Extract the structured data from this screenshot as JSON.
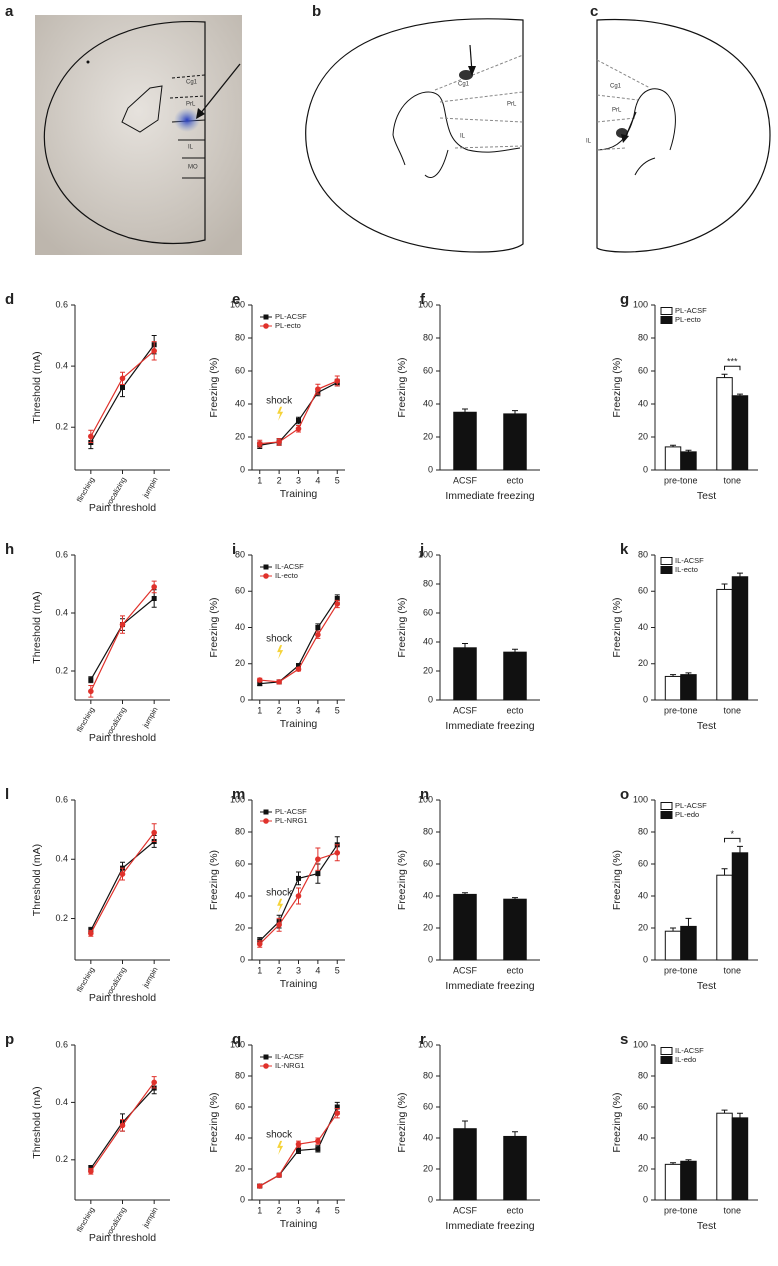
{
  "brains": [
    {
      "panel": "a",
      "labels": [
        "Cg1",
        "PrL",
        "IL",
        "MO"
      ]
    },
    {
      "panel": "b",
      "labels": [
        "Cg1",
        "PrL",
        "IL"
      ]
    },
    {
      "panel": "c",
      "labels": [
        "Cg1",
        "PrL",
        "IL"
      ]
    }
  ],
  "chart_data": [
    {
      "panel": "d",
      "type": "line",
      "ylabel": "Threshold (mA)",
      "xlabel": "Pain threshold",
      "categories": [
        "flinching",
        "vocalizing",
        "jumpin"
      ],
      "ylim": [
        0.06,
        0.6
      ],
      "yticks": [
        0.2,
        0.4,
        0.6
      ],
      "series": [
        {
          "color": "#111111",
          "marker": "square",
          "values": [
            0.15,
            0.33,
            0.47
          ],
          "errors": [
            0.02,
            0.03,
            0.03
          ]
        },
        {
          "color": "#e0312b",
          "marker": "circle",
          "values": [
            0.17,
            0.36,
            0.45
          ],
          "errors": [
            0.02,
            0.02,
            0.03
          ]
        }
      ]
    },
    {
      "panel": "e",
      "type": "line",
      "ylabel": "Freezing (%)",
      "xlabel": "Training",
      "annotation": "shock",
      "x": [
        1,
        2,
        3,
        4,
        5
      ],
      "xlim": [
        0.6,
        5.4
      ],
      "xticks": [
        1,
        2,
        3,
        4,
        5
      ],
      "ylim": [
        0,
        100
      ],
      "yticks": [
        0,
        20,
        40,
        60,
        80,
        100
      ],
      "legend": true,
      "series": [
        {
          "name": "PL-ACSF",
          "color": "#111111",
          "marker": "square",
          "values": [
            15,
            17,
            30,
            47,
            53
          ],
          "errors": [
            2,
            2,
            2,
            2,
            2
          ]
        },
        {
          "name": "PL-ecto",
          "color": "#e0312b",
          "marker": "circle",
          "values": [
            16,
            17,
            25,
            49,
            54
          ],
          "errors": [
            2,
            2,
            2,
            3,
            3
          ]
        }
      ]
    },
    {
      "panel": "f",
      "type": "bar",
      "ylabel": "Freezing (%)",
      "xlabel": "Immediate freezing",
      "categories": [
        "ACSF",
        "ecto"
      ],
      "ylim": [
        0,
        100
      ],
      "yticks": [
        0,
        20,
        40,
        60,
        80,
        100
      ],
      "color": "#111111",
      "values": [
        35,
        34
      ],
      "errors": [
        2,
        2
      ]
    },
    {
      "panel": "g",
      "type": "bar",
      "ylabel": "Freezing (%)",
      "xlabel": "Test",
      "annotation": "***",
      "categories": [
        "pre-tone",
        "tone"
      ],
      "ylim": [
        0,
        100
      ],
      "yticks": [
        0,
        20,
        40,
        60,
        80,
        100
      ],
      "legend": true,
      "series": [
        {
          "name": "PL-ACSF",
          "color": "#ffffff",
          "values": [
            14,
            56
          ],
          "errors": [
            1,
            2
          ]
        },
        {
          "name": "PL-ecto",
          "color": "#111111",
          "values": [
            11,
            45
          ],
          "errors": [
            1,
            1
          ]
        }
      ]
    },
    {
      "panel": "h",
      "type": "line",
      "ylabel": "Threshold (mA)",
      "xlabel": "Pain threshold",
      "categories": [
        "flinching",
        "vocalizing",
        "jumpin"
      ],
      "ylim": [
        0.1,
        0.6
      ],
      "yticks": [
        0.2,
        0.4,
        0.6
      ],
      "series": [
        {
          "color": "#111111",
          "marker": "square",
          "values": [
            0.17,
            0.36,
            0.45
          ],
          "errors": [
            0.01,
            0.02,
            0.03
          ]
        },
        {
          "color": "#e0312b",
          "marker": "circle",
          "values": [
            0.13,
            0.36,
            0.49
          ],
          "errors": [
            0.02,
            0.03,
            0.02
          ]
        }
      ]
    },
    {
      "panel": "i",
      "type": "line",
      "ylabel": "Freezing (%)",
      "xlabel": "Training",
      "annotation": "shock",
      "x": [
        1,
        2,
        3,
        4,
        5
      ],
      "xlim": [
        0.6,
        5.4
      ],
      "xticks": [
        1,
        2,
        3,
        4,
        5
      ],
      "ylim": [
        0,
        80
      ],
      "yticks": [
        0,
        20,
        40,
        60,
        80
      ],
      "legend": true,
      "series": [
        {
          "name": "IL-ACSF",
          "color": "#111111",
          "marker": "square",
          "values": [
            9,
            10,
            19,
            40,
            56
          ],
          "errors": [
            1,
            1,
            1,
            2,
            2
          ]
        },
        {
          "name": "IL-ecto",
          "color": "#e0312b",
          "marker": "circle",
          "values": [
            11,
            10,
            17,
            36,
            53
          ],
          "errors": [
            1,
            1,
            1,
            2,
            2
          ]
        }
      ]
    },
    {
      "panel": "j",
      "type": "bar",
      "ylabel": "Freezing (%)",
      "xlabel": "Immediate freezing",
      "categories": [
        "ACSF",
        "ecto"
      ],
      "ylim": [
        0,
        100
      ],
      "yticks": [
        0,
        20,
        40,
        60,
        80,
        100
      ],
      "color": "#111111",
      "values": [
        36,
        33
      ],
      "errors": [
        3,
        2
      ]
    },
    {
      "panel": "k",
      "type": "bar",
      "ylabel": "Freezing (%)",
      "xlabel": "Test",
      "categories": [
        "pre-tone",
        "tone"
      ],
      "ylim": [
        0,
        80
      ],
      "yticks": [
        0,
        20,
        40,
        60,
        80
      ],
      "legend": true,
      "series": [
        {
          "name": "IL-ACSF",
          "color": "#ffffff",
          "values": [
            13,
            61
          ],
          "errors": [
            1,
            3
          ]
        },
        {
          "name": "IL-ecto",
          "color": "#111111",
          "values": [
            14,
            68
          ],
          "errors": [
            1,
            2
          ]
        }
      ]
    },
    {
      "panel": "l",
      "type": "line",
      "ylabel": "Threshold (mA)",
      "xlabel": "Pain threshold",
      "categories": [
        "flinching",
        "vocalizing",
        "jumpin"
      ],
      "ylim": [
        0.06,
        0.6
      ],
      "yticks": [
        0.2,
        0.4,
        0.6
      ],
      "series": [
        {
          "color": "#111111",
          "marker": "square",
          "values": [
            0.16,
            0.37,
            0.46
          ],
          "errors": [
            0.01,
            0.02,
            0.02
          ]
        },
        {
          "color": "#e0312b",
          "marker": "circle",
          "values": [
            0.15,
            0.35,
            0.49
          ],
          "errors": [
            0.01,
            0.02,
            0.03
          ]
        }
      ]
    },
    {
      "panel": "m",
      "type": "line",
      "ylabel": "Freezing (%)",
      "xlabel": "Training",
      "annotation": "shock",
      "x": [
        1,
        2,
        3,
        4,
        5
      ],
      "xlim": [
        0.6,
        5.4
      ],
      "xticks": [
        1,
        2,
        3,
        4,
        5
      ],
      "ylim": [
        0,
        100
      ],
      "yticks": [
        0,
        20,
        40,
        60,
        80,
        100
      ],
      "legend": true,
      "series": [
        {
          "name": "PL-ACSF",
          "color": "#111111",
          "marker": "square",
          "values": [
            12,
            24,
            51,
            54,
            72
          ],
          "errors": [
            2,
            4,
            4,
            6,
            5
          ]
        },
        {
          "name": "PL-NRG1",
          "color": "#e0312b",
          "marker": "circle",
          "values": [
            10,
            22,
            40,
            63,
            67
          ],
          "errors": [
            2,
            4,
            5,
            7,
            5
          ]
        }
      ]
    },
    {
      "panel": "n",
      "type": "bar",
      "ylabel": "Freezing (%)",
      "xlabel": "Immediate freezing",
      "categories": [
        "ACSF",
        "ecto"
      ],
      "ylim": [
        0,
        100
      ],
      "yticks": [
        0,
        20,
        40,
        60,
        80,
        100
      ],
      "color": "#111111",
      "values": [
        41,
        38
      ],
      "errors": [
        1,
        1
      ]
    },
    {
      "panel": "o",
      "type": "bar",
      "ylabel": "Freezing (%)",
      "xlabel": "Test",
      "annotation": "*",
      "categories": [
        "pre-tone",
        "tone"
      ],
      "ylim": [
        0,
        100
      ],
      "yticks": [
        0,
        20,
        40,
        60,
        80,
        100
      ],
      "legend": true,
      "series": [
        {
          "name": "PL-ACSF",
          "color": "#ffffff",
          "values": [
            18,
            53
          ],
          "errors": [
            2,
            4
          ]
        },
        {
          "name": "PL-edo",
          "color": "#111111",
          "values": [
            21,
            67
          ],
          "errors": [
            5,
            4
          ]
        }
      ]
    },
    {
      "panel": "p",
      "type": "line",
      "ylabel": "Threshold (mA)",
      "xlabel": "Pain threshold",
      "categories": [
        "flinching",
        "vocalizing",
        "jumpin"
      ],
      "ylim": [
        0.06,
        0.6
      ],
      "yticks": [
        0.2,
        0.4,
        0.6
      ],
      "series": [
        {
          "color": "#111111",
          "marker": "square",
          "values": [
            0.17,
            0.33,
            0.45
          ],
          "errors": [
            0.01,
            0.03,
            0.02
          ]
        },
        {
          "color": "#e0312b",
          "marker": "circle",
          "values": [
            0.16,
            0.32,
            0.47
          ],
          "errors": [
            0.01,
            0.02,
            0.02
          ]
        }
      ]
    },
    {
      "panel": "q",
      "type": "line",
      "ylabel": "Freezing (%)",
      "xlabel": "Training",
      "annotation": "shock",
      "x": [
        1,
        2,
        3,
        4,
        5
      ],
      "xlim": [
        0.6,
        5.4
      ],
      "xticks": [
        1,
        2,
        3,
        4,
        5
      ],
      "ylim": [
        0,
        100
      ],
      "yticks": [
        0,
        20,
        40,
        60,
        80,
        100
      ],
      "legend": true,
      "series": [
        {
          "name": "IL-ACSF",
          "color": "#111111",
          "marker": "square",
          "values": [
            9,
            16,
            32,
            33,
            60
          ],
          "errors": [
            1,
            1,
            2,
            2,
            3
          ]
        },
        {
          "name": "IL-NRG1",
          "color": "#e0312b",
          "marker": "circle",
          "values": [
            9,
            16,
            36,
            38,
            56
          ],
          "errors": [
            1,
            1,
            2,
            2,
            3
          ]
        }
      ]
    },
    {
      "panel": "r",
      "type": "bar",
      "ylabel": "Freezing (%)",
      "xlabel": "Immediate freezing",
      "categories": [
        "ACSF",
        "ecto"
      ],
      "ylim": [
        0,
        100
      ],
      "yticks": [
        0,
        20,
        40,
        60,
        80,
        100
      ],
      "color": "#111111",
      "values": [
        46,
        41
      ],
      "errors": [
        5,
        3
      ]
    },
    {
      "panel": "s",
      "type": "bar",
      "ylabel": "Freezing (%)",
      "xlabel": "Test",
      "categories": [
        "pre-tone",
        "tone"
      ],
      "ylim": [
        0,
        100
      ],
      "yticks": [
        0,
        20,
        40,
        60,
        80,
        100
      ],
      "legend": true,
      "series": [
        {
          "name": "IL-ACSF",
          "color": "#ffffff",
          "values": [
            23,
            56
          ],
          "errors": [
            1,
            2
          ]
        },
        {
          "name": "IL-edo",
          "color": "#111111",
          "values": [
            25,
            53
          ],
          "errors": [
            1,
            3
          ]
        }
      ]
    }
  ]
}
